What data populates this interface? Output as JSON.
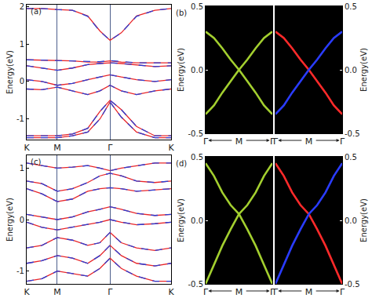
{
  "chart_data": [
    {
      "type": "line",
      "annotation": "(a)",
      "ylabel": "Energy(eV)",
      "x": [
        0,
        0.25,
        0.5,
        0.75,
        1.0,
        1.2,
        1.366,
        1.55,
        1.8,
        2.1,
        2.366
      ],
      "xlim": [
        0,
        2.366
      ],
      "xticks": [
        {
          "value": 0,
          "label": "K"
        },
        {
          "value": 0.5,
          "label": "M"
        },
        {
          "value": 1.366,
          "label": "Γ"
        },
        {
          "value": 2.366,
          "label": "K"
        }
      ],
      "ylim": [
        -1.55,
        2.05
      ],
      "yticks": [
        -1,
        0,
        1,
        2
      ],
      "grid": "x",
      "series": [
        {
          "color": "#e8262a",
          "line_style": "solid",
          "values": [
            1.95,
            1.95,
            1.92,
            1.9,
            1.75,
            1.35,
            1.1,
            1.3,
            1.75,
            1.9,
            1.95
          ]
        },
        {
          "color": "#2a3fd6",
          "line_style": "dashed",
          "values": [
            1.95,
            1.95,
            1.92,
            1.9,
            1.74,
            1.34,
            1.1,
            1.3,
            1.74,
            1.9,
            1.95
          ]
        },
        {
          "color": "#e8262a",
          "line_style": "solid",
          "values": [
            0.58,
            0.57,
            0.55,
            0.55,
            0.52,
            0.52,
            0.55,
            0.52,
            0.5,
            0.5,
            0.5
          ]
        },
        {
          "color": "#2a3fd6",
          "line_style": "dashed",
          "values": [
            0.58,
            0.57,
            0.55,
            0.55,
            0.53,
            0.53,
            0.56,
            0.53,
            0.5,
            0.5,
            0.5
          ]
        },
        {
          "color": "#e8262a",
          "line_style": "solid",
          "values": [
            0.42,
            0.36,
            0.3,
            0.36,
            0.45,
            0.48,
            0.5,
            0.48,
            0.45,
            0.4,
            0.42
          ]
        },
        {
          "color": "#2a3fd6",
          "line_style": "dashed",
          "values": [
            0.42,
            0.36,
            0.3,
            0.36,
            0.45,
            0.48,
            0.5,
            0.48,
            0.45,
            0.4,
            0.42
          ]
        },
        {
          "color": "#e8262a",
          "line_style": "solid",
          "values": [
            0.05,
            0.0,
            -0.1,
            -0.05,
            0.05,
            0.12,
            0.18,
            0.12,
            0.05,
            0.0,
            0.05
          ]
        },
        {
          "color": "#2a3fd6",
          "line_style": "dashed",
          "values": [
            0.05,
            0.0,
            -0.1,
            -0.05,
            0.05,
            0.12,
            0.18,
            0.12,
            0.05,
            0.0,
            0.05
          ]
        },
        {
          "color": "#e8262a",
          "line_style": "solid",
          "values": [
            -0.2,
            -0.22,
            -0.15,
            -0.25,
            -0.35,
            -0.25,
            -0.1,
            -0.25,
            -0.35,
            -0.25,
            -0.2
          ]
        },
        {
          "color": "#2a3fd6",
          "line_style": "dashed",
          "values": [
            -0.2,
            -0.22,
            -0.15,
            -0.25,
            -0.35,
            -0.25,
            -0.1,
            -0.25,
            -0.35,
            -0.25,
            -0.2
          ]
        },
        {
          "color": "#e8262a",
          "line_style": "solid",
          "values": [
            -1.45,
            -1.45,
            -1.45,
            -1.4,
            -1.25,
            -0.8,
            -0.5,
            -0.75,
            -1.2,
            -1.45,
            -1.45
          ]
        },
        {
          "color": "#2a3fd6",
          "line_style": "dashed",
          "values": [
            -1.45,
            -1.45,
            -1.45,
            -1.4,
            -1.25,
            -0.8,
            -0.5,
            -0.75,
            -1.2,
            -1.45,
            -1.45
          ]
        },
        {
          "color": "#e8262a",
          "line_style": "solid",
          "values": [
            -1.5,
            -1.5,
            -1.5,
            -1.45,
            -1.35,
            -1.0,
            -0.55,
            -0.95,
            -1.35,
            -1.5,
            -1.5
          ]
        },
        {
          "color": "#2a3fd6",
          "line_style": "dashed",
          "values": [
            -1.5,
            -1.5,
            -1.5,
            -1.45,
            -1.35,
            -1.0,
            -0.55,
            -0.95,
            -1.35,
            -1.5,
            -1.5
          ]
        }
      ]
    },
    {
      "type": "line",
      "annotation": "(b)",
      "ylabel": "Energy(eV)",
      "x": [
        0,
        0.25,
        0.5,
        0.75,
        1,
        1.25,
        1.5,
        1.75,
        2
      ],
      "xlim": [
        0,
        2
      ],
      "xticks": [
        {
          "value": 0,
          "label": "Γ"
        },
        {
          "value": 1,
          "label": "M"
        },
        {
          "value": 2,
          "label": "Γ"
        }
      ],
      "ylim": [
        -0.5,
        0.5
      ],
      "yticks": [
        -0.5,
        {
          "value": 0,
          "label": "0.0"
        },
        0.5
      ],
      "grid": false,
      "series": [
        {
          "color": "#a3cf2f",
          "line_style": "solid",
          "values": [
            0.3,
            0.25,
            0.17,
            0.08,
            0.0,
            0.08,
            0.17,
            0.25,
            0.3
          ]
        },
        {
          "color": "#a3cf2f",
          "line_style": "solid",
          "values": [
            -0.35,
            -0.28,
            -0.18,
            -0.09,
            0.0,
            -0.09,
            -0.18,
            -0.28,
            -0.35
          ]
        }
      ]
    },
    {
      "type": "line",
      "ylabel": "Energy(eV)",
      "x": [
        0,
        0.25,
        0.5,
        0.75,
        1,
        1.25,
        1.5,
        1.75,
        2
      ],
      "xlim": [
        0,
        2
      ],
      "xticks": [
        {
          "value": 0,
          "label": "Γ"
        },
        {
          "value": 1,
          "label": "M"
        },
        {
          "value": 2,
          "label": "Γ"
        }
      ],
      "ylim": [
        -0.5,
        0.5
      ],
      "yticks": [
        -0.5,
        {
          "value": 0,
          "label": "0.0"
        },
        0.5
      ],
      "grid": false,
      "series": [
        {
          "color": "#ff2a2a",
          "line_style": "solid",
          "values": [
            0.3,
            0.25,
            0.17,
            0.08,
            0.0,
            -0.09,
            -0.18,
            -0.28,
            -0.35
          ]
        },
        {
          "color": "#2a3cff",
          "line_style": "solid",
          "values": [
            -0.35,
            -0.28,
            -0.18,
            -0.09,
            0.0,
            0.08,
            0.17,
            0.25,
            0.3
          ]
        }
      ]
    },
    {
      "type": "line",
      "annotation": "(c)",
      "ylabel": "Energy(eV)",
      "x": [
        0,
        0.25,
        0.5,
        0.75,
        1.0,
        1.2,
        1.366,
        1.55,
        1.8,
        2.1,
        2.366
      ],
      "xlim": [
        0,
        2.366
      ],
      "xticks": [
        {
          "value": 0,
          "label": "K"
        },
        {
          "value": 0.5,
          "label": "M"
        },
        {
          "value": 1.366,
          "label": "Γ"
        },
        {
          "value": 2.366,
          "label": "K"
        }
      ],
      "ylim": [
        -1.25,
        1.25
      ],
      "yticks": [
        -1,
        0,
        1
      ],
      "grid": "x",
      "series": [
        {
          "color": "#e8262a",
          "line_style": "solid",
          "values": [
            1.1,
            1.05,
            1.0,
            1.02,
            1.05,
            1.0,
            0.95,
            1.0,
            1.05,
            1.1,
            1.1
          ]
        },
        {
          "color": "#2a3fd6",
          "line_style": "dashed",
          "values": [
            1.1,
            1.05,
            1.0,
            1.02,
            1.05,
            1.0,
            0.95,
            1.0,
            1.05,
            1.1,
            1.1
          ]
        },
        {
          "color": "#e8262a",
          "line_style": "solid",
          "values": [
            0.75,
            0.7,
            0.55,
            0.6,
            0.72,
            0.85,
            0.9,
            0.85,
            0.75,
            0.72,
            0.75
          ]
        },
        {
          "color": "#2a3fd6",
          "line_style": "dashed",
          "values": [
            0.75,
            0.7,
            0.55,
            0.6,
            0.72,
            0.85,
            0.9,
            0.85,
            0.75,
            0.72,
            0.75
          ]
        },
        {
          "color": "#e8262a",
          "line_style": "solid",
          "values": [
            0.6,
            0.5,
            0.35,
            0.4,
            0.55,
            0.6,
            0.62,
            0.6,
            0.55,
            0.58,
            0.6
          ]
        },
        {
          "color": "#2a3fd6",
          "line_style": "dashed",
          "values": [
            0.6,
            0.5,
            0.35,
            0.4,
            0.55,
            0.6,
            0.62,
            0.6,
            0.55,
            0.58,
            0.6
          ]
        },
        {
          "color": "#e8262a",
          "line_style": "solid",
          "values": [
            0.1,
            0.05,
            0.0,
            0.05,
            0.15,
            0.2,
            0.25,
            0.2,
            0.12,
            0.08,
            0.1
          ]
        },
        {
          "color": "#2a3fd6",
          "line_style": "dashed",
          "values": [
            0.1,
            0.05,
            0.0,
            0.05,
            0.15,
            0.2,
            0.25,
            0.2,
            0.12,
            0.08,
            0.1
          ]
        },
        {
          "color": "#e8262a",
          "line_style": "solid",
          "values": [
            -0.05,
            -0.15,
            -0.2,
            -0.15,
            -0.1,
            -0.05,
            0.0,
            -0.05,
            -0.1,
            -0.08,
            -0.05
          ]
        },
        {
          "color": "#2a3fd6",
          "line_style": "dashed",
          "values": [
            -0.05,
            -0.15,
            -0.2,
            -0.15,
            -0.1,
            -0.05,
            0.0,
            -0.05,
            -0.1,
            -0.08,
            -0.05
          ]
        },
        {
          "color": "#e8262a",
          "line_style": "solid",
          "values": [
            -0.55,
            -0.5,
            -0.35,
            -0.4,
            -0.5,
            -0.45,
            -0.25,
            -0.45,
            -0.55,
            -0.6,
            -0.55
          ]
        },
        {
          "color": "#2a3fd6",
          "line_style": "dashed",
          "values": [
            -0.55,
            -0.5,
            -0.35,
            -0.4,
            -0.5,
            -0.45,
            -0.25,
            -0.45,
            -0.55,
            -0.6,
            -0.55
          ]
        },
        {
          "color": "#e8262a",
          "line_style": "solid",
          "values": [
            -0.85,
            -0.8,
            -0.7,
            -0.75,
            -0.85,
            -0.7,
            -0.5,
            -0.7,
            -0.85,
            -0.9,
            -0.85
          ]
        },
        {
          "color": "#2a3fd6",
          "line_style": "dashed",
          "values": [
            -0.85,
            -0.8,
            -0.7,
            -0.75,
            -0.85,
            -0.7,
            -0.5,
            -0.7,
            -0.85,
            -0.9,
            -0.85
          ]
        },
        {
          "color": "#e8262a",
          "line_style": "solid",
          "values": [
            -1.2,
            -1.15,
            -1.0,
            -1.05,
            -1.1,
            -0.95,
            -0.75,
            -0.95,
            -1.1,
            -1.2,
            -1.2
          ]
        },
        {
          "color": "#2a3fd6",
          "line_style": "dashed",
          "values": [
            -1.2,
            -1.15,
            -1.0,
            -1.05,
            -1.1,
            -0.95,
            -0.75,
            -0.95,
            -1.1,
            -1.2,
            -1.2
          ]
        }
      ]
    },
    {
      "type": "line",
      "annotation": "(d)",
      "ylabel": "Energy(eV)",
      "x": [
        0,
        0.25,
        0.5,
        0.75,
        1,
        1.25,
        1.5,
        1.75,
        2
      ],
      "xlim": [
        0,
        2
      ],
      "xticks": [
        {
          "value": 0,
          "label": "Γ"
        },
        {
          "value": 1,
          "label": "M"
        },
        {
          "value": 2,
          "label": "Γ"
        }
      ],
      "ylim": [
        -0.5,
        0.5
      ],
      "yticks": [
        -0.5,
        {
          "value": 0,
          "label": "0.0"
        },
        0.5
      ],
      "grid": false,
      "series": [
        {
          "color": "#a3cf2f",
          "line_style": "solid",
          "values": [
            0.45,
            0.35,
            0.22,
            0.12,
            0.05,
            0.12,
            0.22,
            0.35,
            0.45
          ]
        },
        {
          "color": "#a3cf2f",
          "line_style": "solid",
          "values": [
            -0.5,
            -0.35,
            -0.2,
            -0.07,
            0.05,
            -0.07,
            -0.2,
            -0.35,
            -0.5
          ]
        }
      ]
    },
    {
      "type": "line",
      "ylabel": "Energy(eV)",
      "x": [
        0,
        0.25,
        0.5,
        0.75,
        1,
        1.25,
        1.5,
        1.75,
        2
      ],
      "xlim": [
        0,
        2
      ],
      "xticks": [
        {
          "value": 0,
          "label": "Γ"
        },
        {
          "value": 1,
          "label": "M"
        },
        {
          "value": 2,
          "label": "Γ"
        }
      ],
      "ylim": [
        -0.5,
        0.5
      ],
      "yticks": [
        -0.5,
        {
          "value": 0,
          "label": "0.0"
        },
        0.5
      ],
      "grid": false,
      "series": [
        {
          "color": "#ff2a2a",
          "line_style": "solid",
          "values": [
            0.45,
            0.35,
            0.22,
            0.12,
            0.05,
            -0.07,
            -0.2,
            -0.35,
            -0.5
          ]
        },
        {
          "color": "#2a3cff",
          "line_style": "solid",
          "values": [
            -0.5,
            -0.35,
            -0.2,
            -0.07,
            0.05,
            0.12,
            0.22,
            0.35,
            0.45
          ]
        }
      ]
    }
  ]
}
